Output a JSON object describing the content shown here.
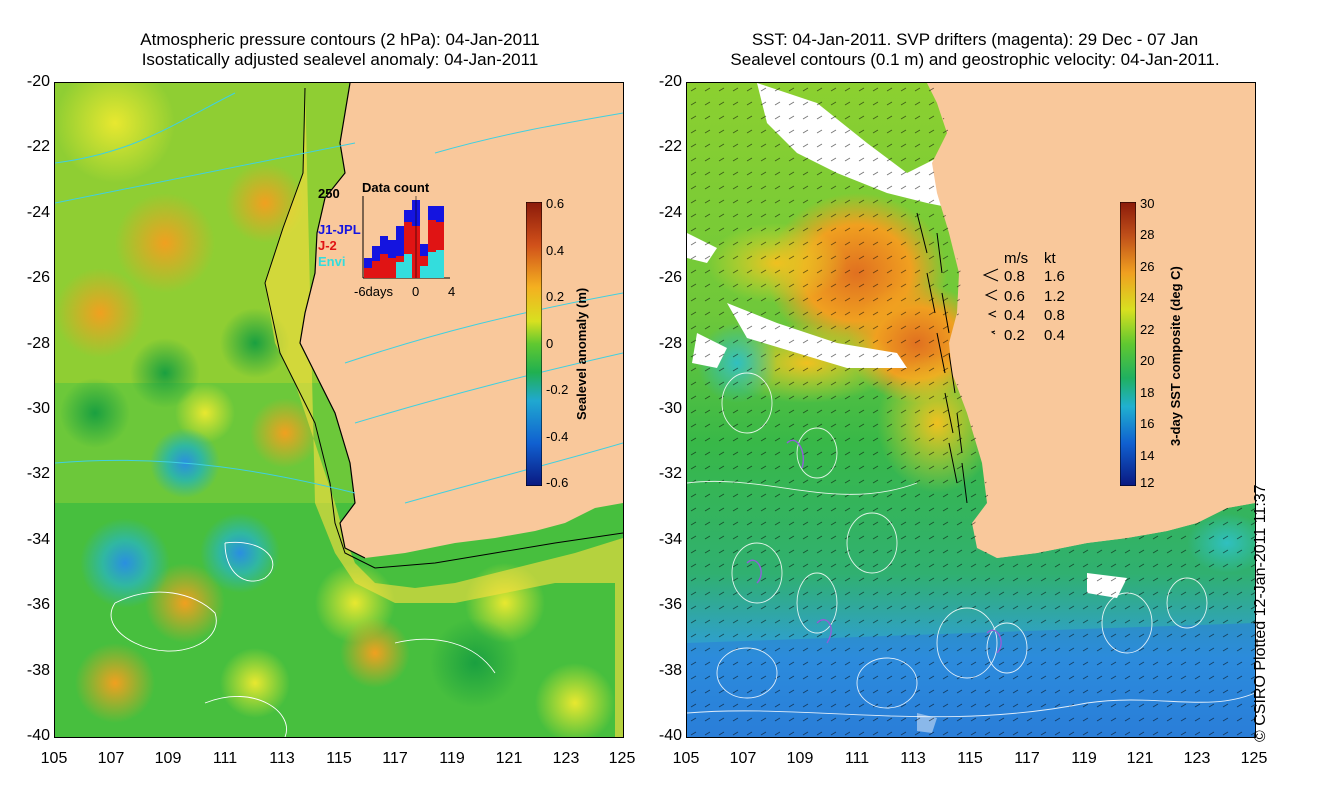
{
  "left_panel": {
    "title_line1": "Atmospheric pressure contours (2 hPa): 04-Jan-2011",
    "title_line2": "Isostatically adjusted sealevel anomaly: 04-Jan-2011",
    "colorbar_label": "Sealevel anomaly (m)",
    "colorbar_ticks": [
      "0.6",
      "0.4",
      "0.2",
      "0",
      "-0.2",
      "-0.4",
      "-0.6"
    ],
    "inset": {
      "max_label": "250",
      "title": "Data count",
      "legend": [
        "J1-JPL",
        "J-2",
        "Envi"
      ],
      "legend_colors": [
        "#1414e0",
        "#e01414",
        "#33dddd"
      ],
      "x_labels": [
        "-6days",
        "0",
        "4"
      ]
    }
  },
  "right_panel": {
    "title_line1": "SST: 04-Jan-2011. SVP drifters (magenta): 29 Dec - 07 Jan",
    "title_line2": "Sealevel contours (0.1 m) and geostrophic velocity: 04-Jan-2011.",
    "colorbar_label": "3-day SST composite (deg C)",
    "colorbar_ticks": [
      "30",
      "28",
      "26",
      "24",
      "22",
      "20",
      "18",
      "16",
      "14",
      "12"
    ],
    "velocity_legend": {
      "header_ms": "m/s",
      "header_kt": "kt",
      "rows": [
        {
          "ms": "0.8",
          "kt": "1.6"
        },
        {
          "ms": "0.6",
          "kt": "1.2"
        },
        {
          "ms": "0.4",
          "kt": "0.8"
        },
        {
          "ms": "0.2",
          "kt": "0.4"
        }
      ]
    }
  },
  "axes": {
    "y_ticks": [
      "-20",
      "-22",
      "-24",
      "-26",
      "-28",
      "-30",
      "-32",
      "-34",
      "-36",
      "-38",
      "-40"
    ],
    "x_ticks": [
      "105",
      "107",
      "109",
      "111",
      "113",
      "115",
      "117",
      "119",
      "121",
      "123",
      "125"
    ]
  },
  "copyright": "© CSIRO Plotted 12-Jan-2011 11:37",
  "colors": {
    "land": "#f9c89b",
    "ocean_green": "#33c23a",
    "warm": "#f2b22a",
    "cool_blue": "#1a8ee0"
  }
}
